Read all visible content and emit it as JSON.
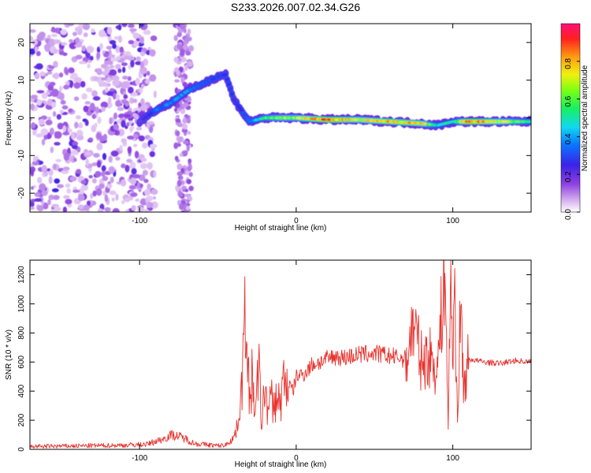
{
  "page": {
    "title": "S233.2026.007.02.34.G26"
  },
  "chart_data": [
    {
      "type": "heatmap",
      "xlabel": "Height of straight line (km)",
      "ylabel": "Frequency (Hz)",
      "xlim": [
        -170,
        150
      ],
      "ylim": [
        -25,
        25
      ],
      "xticks": [
        -100,
        0,
        100
      ],
      "yticks": [
        -20,
        -10,
        0,
        10,
        20
      ],
      "colorbar": {
        "label": "Normalized spectral amplitude",
        "range": [
          0,
          1
        ],
        "ticks": [
          "0.0",
          "0.2",
          "0.4",
          "0.6",
          "0.8"
        ],
        "tick_values": [
          0,
          0.2,
          0.4,
          0.6,
          0.8
        ]
      },
      "ridge_x": [
        -100,
        -90,
        -80,
        -70,
        -60,
        -50,
        -45,
        -40,
        -30,
        -20,
        -10,
        0,
        20,
        40,
        60,
        80,
        90,
        100,
        110,
        150
      ],
      "ridge_y": [
        -1,
        2,
        4,
        7,
        9,
        11,
        11.5,
        5,
        -1,
        0,
        0,
        0,
        -0.5,
        -0.5,
        -1,
        -1.5,
        -2,
        -1,
        -1,
        -1
      ],
      "ridge_amplitude": [
        0.2,
        0.35,
        0.4,
        0.4,
        0.35,
        0.3,
        0.3,
        0.25,
        0.35,
        0.6,
        0.7,
        0.7,
        0.95,
        0.75,
        0.85,
        0.8,
        0.5,
        0.5,
        0.95,
        0.55
      ]
    },
    {
      "type": "line",
      "color": "#e8322d",
      "xlabel": "Height of straight line (km)",
      "ylabel": "SNR (10 * v/v)",
      "xlim": [
        -170,
        150
      ],
      "ylim": [
        0,
        1300
      ],
      "xticks": [
        -100,
        0,
        100
      ],
      "yticks": [
        0,
        200,
        400,
        600,
        800,
        1000,
        1200
      ],
      "x": [
        -170,
        -150,
        -130,
        -110,
        -95,
        -90,
        -85,
        -80,
        -75,
        -70,
        -65,
        -60,
        -55,
        -50,
        -45,
        -40,
        -38,
        -36,
        -34,
        -32,
        -31,
        -30,
        -29,
        -28,
        -26,
        -24,
        -22,
        -20,
        -18,
        -16,
        -14,
        -12,
        -10,
        -8,
        -5,
        -2,
        0,
        5,
        10,
        15,
        20,
        25,
        30,
        40,
        50,
        60,
        70,
        75,
        80,
        85,
        90,
        92,
        95,
        97,
        99,
        100,
        101,
        103,
        105,
        107,
        110,
        120,
        130,
        140,
        150
      ],
      "y": [
        20,
        22,
        25,
        28,
        35,
        55,
        70,
        100,
        90,
        70,
        40,
        35,
        30,
        25,
        30,
        80,
        140,
        300,
        550,
        1050,
        700,
        400,
        250,
        550,
        200,
        600,
        150,
        450,
        250,
        350,
        280,
        380,
        300,
        480,
        450,
        400,
        500,
        520,
        580,
        600,
        620,
        640,
        630,
        650,
        660,
        640,
        620,
        860,
        600,
        640,
        550,
        800,
        1300,
        150,
        1300,
        500,
        1150,
        200,
        1000,
        400,
        620,
        600,
        590,
        610,
        600
      ]
    }
  ]
}
